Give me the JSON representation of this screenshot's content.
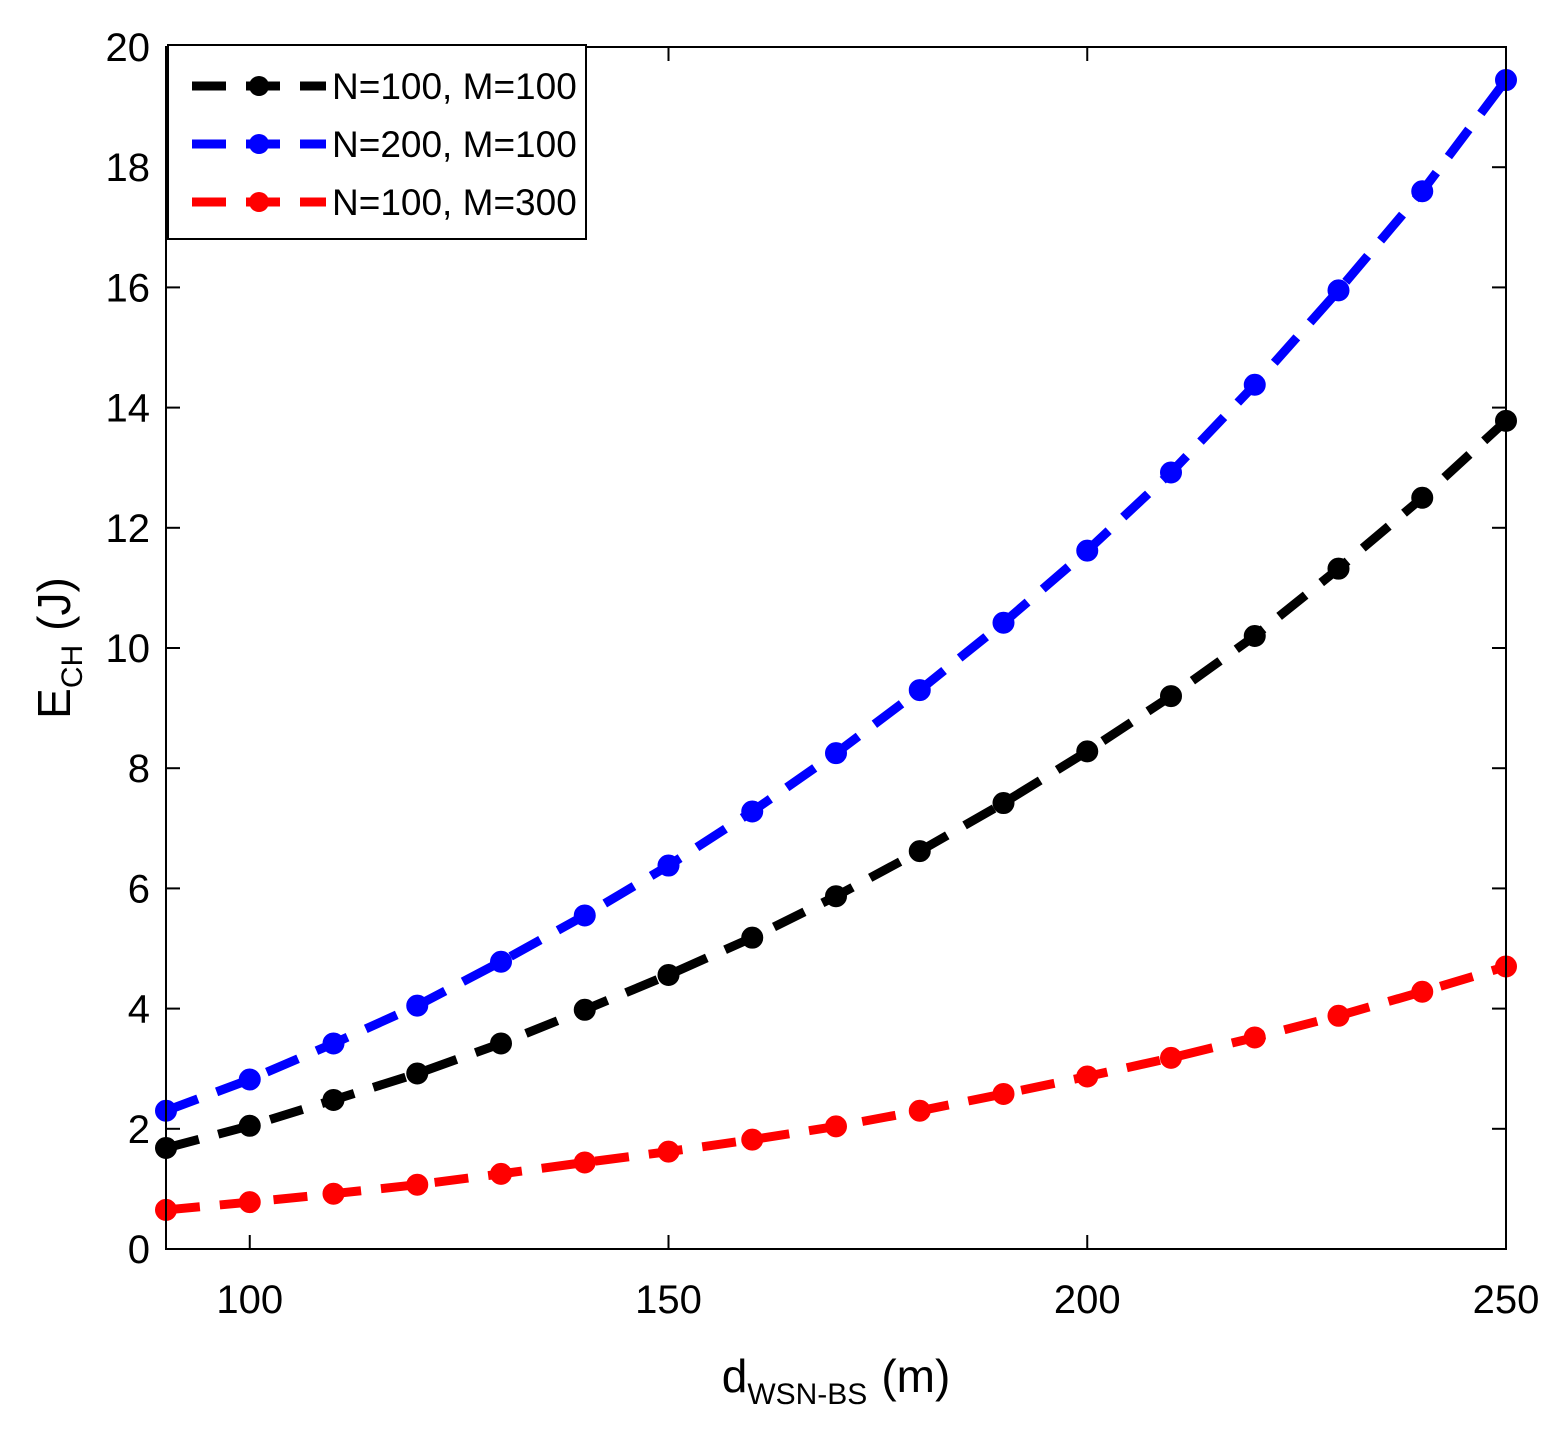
{
  "chart_data": {
    "type": "line",
    "title": "",
    "xlabel": {
      "main": "d",
      "sub": "WSN-BS",
      "unit": "(m)"
    },
    "ylabel": {
      "main": "E",
      "sub": "CH",
      "unit": "(J)"
    },
    "xlim": [
      90,
      250
    ],
    "ylim": [
      0,
      20
    ],
    "xticks": [
      100,
      150,
      200,
      250
    ],
    "yticks": [
      0,
      2,
      4,
      6,
      8,
      10,
      12,
      14,
      16,
      18,
      20
    ],
    "grid": false,
    "legend_position": "top-left",
    "x": [
      90,
      100,
      110,
      120,
      130,
      140,
      150,
      160,
      170,
      180,
      190,
      200,
      210,
      220,
      230,
      240,
      250
    ],
    "series": [
      {
        "name": "N=100, M=100",
        "color": "#000000",
        "values": [
          1.68,
          2.05,
          2.48,
          2.92,
          3.42,
          3.98,
          4.56,
          5.18,
          5.87,
          6.62,
          7.42,
          8.28,
          9.2,
          10.2,
          11.32,
          12.5,
          13.78
        ]
      },
      {
        "name": "N=200, M=100",
        "color": "#0000ff",
        "values": [
          2.3,
          2.82,
          3.42,
          4.05,
          4.78,
          5.55,
          6.38,
          7.28,
          8.25,
          9.3,
          10.42,
          11.62,
          12.92,
          14.38,
          15.95,
          17.6,
          19.45
        ]
      },
      {
        "name": "N=100, M=300",
        "color": "#ff0000",
        "values": [
          0.65,
          0.78,
          0.92,
          1.07,
          1.25,
          1.44,
          1.62,
          1.82,
          2.04,
          2.3,
          2.58,
          2.87,
          3.18,
          3.52,
          3.88,
          4.28,
          4.7
        ]
      }
    ]
  }
}
